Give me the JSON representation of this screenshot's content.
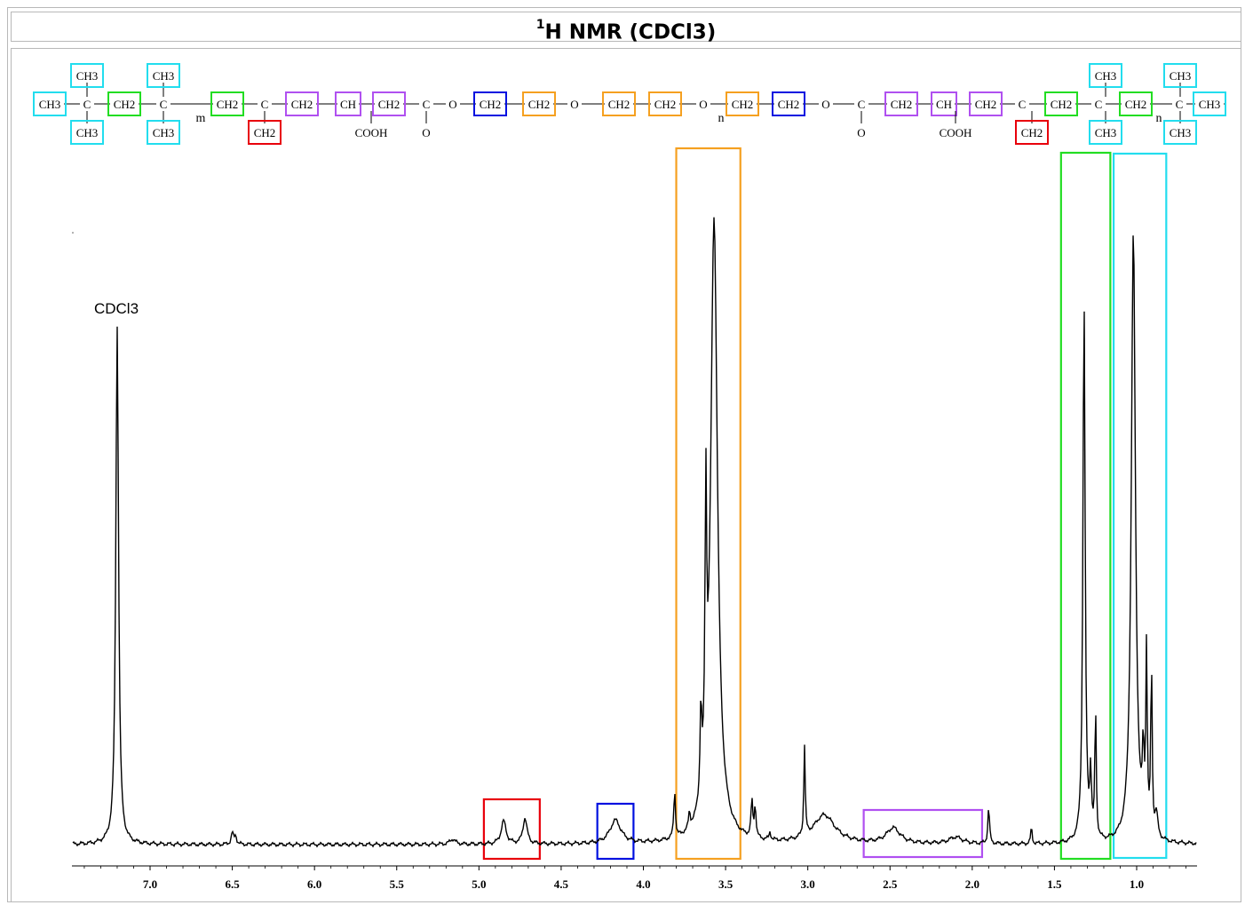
{
  "title": {
    "sup": "1",
    "text": "H NMR (CDCl3)"
  },
  "structure": {
    "groups": [
      {
        "label": "CH3",
        "box": "cyan"
      },
      {
        "label": "C"
      },
      {
        "label": "CH2",
        "box": "green"
      },
      {
        "label": "C"
      },
      {
        "label": "m"
      },
      {
        "label": "CH2",
        "box": "green"
      },
      {
        "label": "C"
      },
      {
        "label": "CH2",
        "box": "purple"
      },
      {
        "label": "CH",
        "box": "purple"
      },
      {
        "label": "CH2",
        "box": "purple"
      },
      {
        "label": "C"
      },
      {
        "label": "O"
      },
      {
        "label": "CH2",
        "box": "blue"
      },
      {
        "label": "CH2",
        "box": "orange"
      },
      {
        "label": "O"
      },
      {
        "label": "CH2",
        "box": "orange"
      },
      {
        "label": "CH2",
        "box": "orange"
      },
      {
        "label": "O"
      },
      {
        "label": "n"
      },
      {
        "label": "CH2",
        "box": "orange"
      },
      {
        "label": "CH2",
        "box": "blue"
      },
      {
        "label": "O"
      },
      {
        "label": "C"
      },
      {
        "label": "CH2",
        "box": "purple"
      },
      {
        "label": "CH",
        "box": "purple"
      },
      {
        "label": "CH2",
        "box": "purple"
      },
      {
        "label": "C"
      },
      {
        "label": "CH2",
        "box": "green"
      },
      {
        "label": "C"
      },
      {
        "label": "CH2",
        "box": "green"
      },
      {
        "label": "n"
      },
      {
        "label": "C"
      },
      {
        "label": "CH3",
        "box": "cyan"
      }
    ],
    "substituents": [
      "CH3",
      "CH3",
      "CH3",
      "CH3",
      "CH2",
      "COOH",
      "O",
      "O",
      "COOH",
      "CH2",
      "CH3",
      "CH3",
      "CH3",
      "CH3"
    ]
  },
  "colors": {
    "red": "#e8000b",
    "blue": "#0010e0",
    "orange": "#f5a020",
    "purple": "#b050f0",
    "green": "#22dd22",
    "cyan": "#22ddee"
  },
  "chart_data": {
    "type": "line",
    "title": "1H NMR (CDCl3)",
    "xlabel": "",
    "ylabel": "",
    "xlim": [
      7.5,
      0.65
    ],
    "x_reversed": true,
    "ticks": [
      7.0,
      6.5,
      6.0,
      5.5,
      5.0,
      4.5,
      4.0,
      3.5,
      3.0,
      2.5,
      2.0,
      1.5,
      1.0
    ],
    "tick_labels": [
      "7.0",
      "6.5",
      "6.0",
      "5.5",
      "5.0",
      "4.5",
      "4.0",
      "3.5",
      "3.0",
      "2.5",
      "2.0",
      "1.5",
      "1.0"
    ],
    "annotations": [
      {
        "text": "CDCl3",
        "x": 7.2
      }
    ],
    "peaks": [
      {
        "ppm": 7.2,
        "height": 100,
        "width": 0.01
      },
      {
        "ppm": 6.5,
        "height": 2.2,
        "width": 0.008
      },
      {
        "ppm": 6.48,
        "height": 1.6,
        "width": 0.008
      },
      {
        "ppm": 5.16,
        "height": 1.0,
        "width": 0.02
      },
      {
        "ppm": 4.85,
        "height": 4.5,
        "width": 0.018
      },
      {
        "ppm": 4.72,
        "height": 5.0,
        "width": 0.015
      },
      {
        "ppm": 4.17,
        "height": 4.5,
        "width": 0.04
      },
      {
        "ppm": 3.81,
        "height": 9.0,
        "width": 0.006
      },
      {
        "ppm": 3.72,
        "height": 3.0,
        "width": 0.006
      },
      {
        "ppm": 3.65,
        "height": 17.0,
        "width": 0.006
      },
      {
        "ppm": 3.62,
        "height": 52.0,
        "width": 0.006
      },
      {
        "ppm": 3.57,
        "height": 120.0,
        "width": 0.025
      },
      {
        "ppm": 3.34,
        "height": 7.0,
        "width": 0.006
      },
      {
        "ppm": 3.32,
        "height": 6.0,
        "width": 0.006
      },
      {
        "ppm": 3.23,
        "height": 1.5,
        "width": 0.006
      },
      {
        "ppm": 3.02,
        "height": 17.5,
        "width": 0.005
      },
      {
        "ppm": 2.9,
        "height": 5.5,
        "width": 0.08
      },
      {
        "ppm": 2.48,
        "height": 3.0,
        "width": 0.05
      },
      {
        "ppm": 2.1,
        "height": 1.3,
        "width": 0.05
      },
      {
        "ppm": 1.9,
        "height": 7.0,
        "width": 0.006
      },
      {
        "ppm": 1.64,
        "height": 3.2,
        "width": 0.005
      },
      {
        "ppm": 1.32,
        "height": 105.0,
        "width": 0.008
      },
      {
        "ppm": 1.28,
        "height": 12.0,
        "width": 0.006
      },
      {
        "ppm": 1.25,
        "height": 25.0,
        "width": 0.005
      },
      {
        "ppm": 1.02,
        "height": 118.0,
        "width": 0.015
      },
      {
        "ppm": 0.96,
        "height": 14.0,
        "width": 0.006
      },
      {
        "ppm": 0.94,
        "height": 35.0,
        "width": 0.005
      },
      {
        "ppm": 0.91,
        "height": 33.0,
        "width": 0.005
      },
      {
        "ppm": 0.88,
        "height": 4.5,
        "width": 0.01
      }
    ],
    "regions": [
      {
        "name": "red",
        "from": 4.97,
        "to": 4.63,
        "color": "#e8000b"
      },
      {
        "name": "blue",
        "from": 4.28,
        "to": 4.06,
        "color": "#0010e0"
      },
      {
        "name": "orange",
        "from": 3.8,
        "to": 3.41,
        "color": "#f5a020"
      },
      {
        "name": "purple",
        "from": 2.66,
        "to": 1.94,
        "color": "#b050f0"
      },
      {
        "name": "green",
        "from": 1.46,
        "to": 1.16,
        "color": "#22dd22"
      },
      {
        "name": "cyan",
        "from": 1.14,
        "to": 0.82,
        "color": "#22ddee"
      }
    ]
  }
}
